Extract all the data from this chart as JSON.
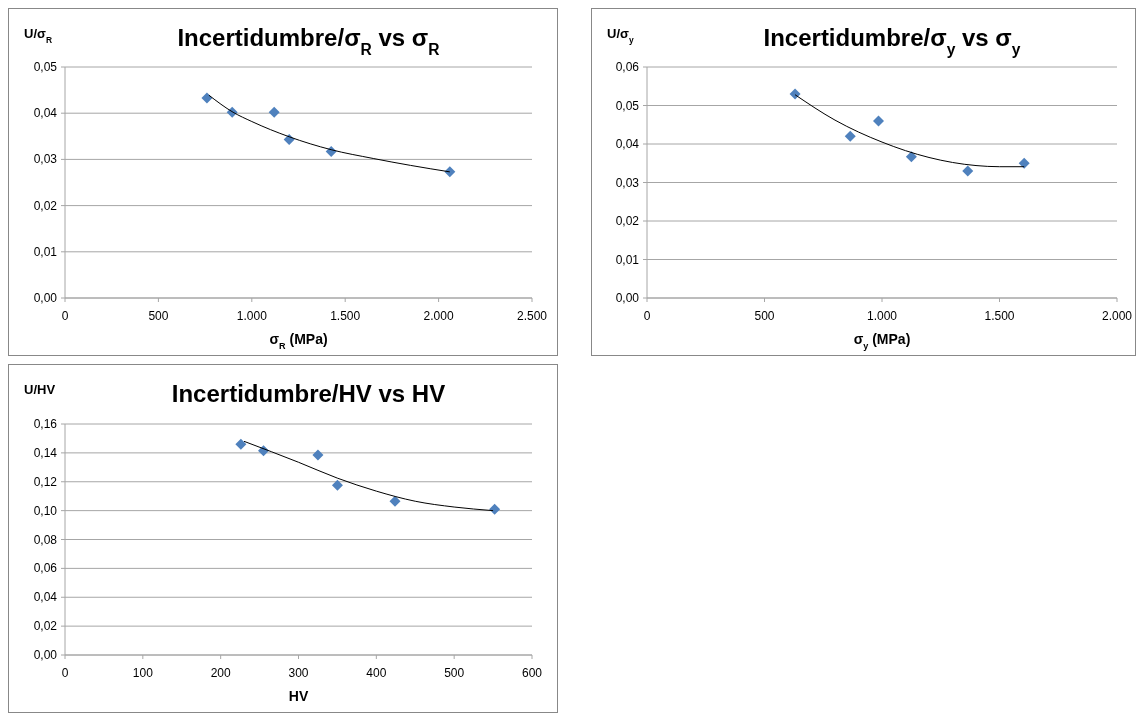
{
  "chart_data": [
    {
      "type": "scatter",
      "title": "Incertidumbre/σ$_{R}$ vs σ$_{R}$",
      "xlabel": "σ$_{R}$ (MPa)",
      "ylabel": "U/σ$_{R}$",
      "xlim": [
        0,
        2500
      ],
      "ylim": [
        0,
        0.05
      ],
      "xticks": [
        0,
        500,
        {
          "value": 1000,
          "label": "1.000"
        },
        {
          "value": 1500,
          "label": "1.500"
        },
        {
          "value": 2000,
          "label": "2.000"
        },
        {
          "value": 2500,
          "label": "2.500"
        }
      ],
      "yticks": [
        {
          "value": 0,
          "label": "0,00"
        },
        {
          "value": 0.01,
          "label": "0,01"
        },
        {
          "value": 0.02,
          "label": "0,02"
        },
        {
          "value": 0.03,
          "label": "0,03"
        },
        {
          "value": 0.04,
          "label": "0,04"
        },
        {
          "value": 0.05,
          "label": "0,05"
        }
      ],
      "grid": "y",
      "series": [
        {
          "color": "#4f81bd",
          "marker": "diamond",
          "x": [
            760,
            895,
            1120,
            1200,
            1425,
            2060
          ],
          "values": [
            0.0433,
            0.0402,
            0.0402,
            0.0343,
            0.0317,
            0.0273
          ]
        },
        {
          "type": "line",
          "color": "#000000",
          "marker": "none",
          "x": [
            770,
            900,
            1000,
            1200,
            1425,
            1650,
            1850,
            2060
          ],
          "values": [
            0.0439,
            0.0402,
            0.0382,
            0.0349,
            0.0321,
            0.0302,
            0.0287,
            0.0273
          ]
        }
      ]
    },
    {
      "type": "scatter",
      "title": "Incertidumbre/σ$_{y}$ vs σ$_{y}$",
      "xlabel": "σ$_{y}$ (MPa)",
      "ylabel": "U/σ$_{y}$",
      "xlim": [
        0,
        2000
      ],
      "ylim": [
        0,
        0.06
      ],
      "xticks": [
        0,
        500,
        {
          "value": 1000,
          "label": "1.000"
        },
        {
          "value": 1500,
          "label": "1.500"
        },
        {
          "value": 2000,
          "label": "2.000"
        }
      ],
      "yticks": [
        {
          "value": 0,
          "label": "0,00"
        },
        {
          "value": 0.01,
          "label": "0,01"
        },
        {
          "value": 0.02,
          "label": "0,02"
        },
        {
          "value": 0.03,
          "label": "0,03"
        },
        {
          "value": 0.04,
          "label": "0,04"
        },
        {
          "value": 0.05,
          "label": "0,05"
        },
        {
          "value": 0.06,
          "label": "0,06"
        }
      ],
      "grid": "y",
      "series": [
        {
          "color": "#4f81bd",
          "marker": "diamond",
          "x": [
            630,
            865,
            985,
            1125,
            1365,
            1605
          ],
          "values": [
            0.053,
            0.042,
            0.046,
            0.0367,
            0.033,
            0.035
          ]
        },
        {
          "type": "line",
          "color": "#000000",
          "marker": "none",
          "x": [
            630,
            800,
            1000,
            1200,
            1400,
            1500,
            1605
          ],
          "values": [
            0.0528,
            0.0462,
            0.0405,
            0.0365,
            0.0344,
            0.0341,
            0.0341
          ]
        }
      ]
    },
    {
      "type": "scatter",
      "title": "Incertidumbre/HV vs HV",
      "xlabel": "HV",
      "ylabel": "U/HV",
      "xlim": [
        0,
        600
      ],
      "ylim": [
        0,
        0.16
      ],
      "xticks": [
        0,
        100,
        200,
        300,
        400,
        500,
        600
      ],
      "yticks": [
        {
          "value": 0,
          "label": "0,00"
        },
        {
          "value": 0.02,
          "label": "0,02"
        },
        {
          "value": 0.04,
          "label": "0,04"
        },
        {
          "value": 0.06,
          "label": "0,06"
        },
        {
          "value": 0.08,
          "label": "0,08"
        },
        {
          "value": 0.1,
          "label": "0,10"
        },
        {
          "value": 0.12,
          "label": "0,12"
        },
        {
          "value": 0.14,
          "label": "0,14"
        },
        {
          "value": 0.16,
          "label": "0,16"
        }
      ],
      "grid": "y",
      "series": [
        {
          "color": "#4f81bd",
          "marker": "diamond",
          "x": [
            226,
            255,
            325,
            350,
            424,
            552
          ],
          "values": [
            0.146,
            0.1415,
            0.1385,
            0.1175,
            0.1065,
            0.101
          ]
        },
        {
          "type": "line",
          "color": "#000000",
          "marker": "none",
          "x": [
            230,
            300,
            350,
            400,
            450,
            500,
            550
          ],
          "values": [
            0.148,
            0.1335,
            0.1225,
            0.1135,
            0.1065,
            0.1025,
            0.1
          ]
        }
      ]
    }
  ]
}
